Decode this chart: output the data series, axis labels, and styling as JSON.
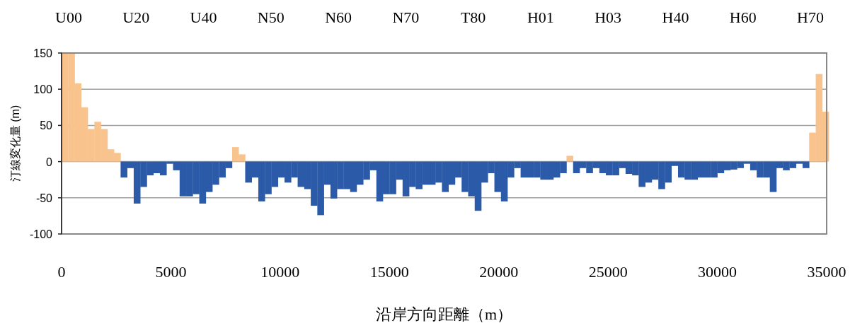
{
  "chart_data": {
    "type": "bar",
    "xlabel": "沿岸方向距離（m）",
    "ylabel": "汀線変化量 (m)",
    "x": [
      150,
      450,
      750,
      1050,
      1350,
      1650,
      1950,
      2250,
      2550,
      2850,
      3150,
      3450,
      3750,
      4050,
      4350,
      4650,
      4950,
      5250,
      5550,
      5850,
      6150,
      6450,
      6750,
      7050,
      7350,
      7650,
      7950,
      8250,
      8550,
      8850,
      9150,
      9450,
      9750,
      10050,
      10350,
      10650,
      10950,
      11250,
      11550,
      11850,
      12150,
      12450,
      12750,
      13050,
      13350,
      13650,
      13950,
      14250,
      14550,
      14850,
      15150,
      15450,
      15750,
      16050,
      16350,
      16650,
      16950,
      17250,
      17550,
      17850,
      18150,
      18450,
      18750,
      19050,
      19350,
      19650,
      19950,
      20250,
      20550,
      20850,
      21150,
      21450,
      21750,
      22050,
      22350,
      22650,
      22950,
      23250,
      23550,
      23850,
      24150,
      24450,
      24750,
      25050,
      25350,
      25650,
      25950,
      26250,
      26550,
      26850,
      27150,
      27450,
      27750,
      28050,
      28350,
      28650,
      28950,
      29250,
      29550,
      29850,
      30150,
      30450,
      30750,
      31050,
      31350,
      31650,
      31950,
      32250,
      32550,
      32850,
      33150,
      33450,
      33750,
      34050,
      34350,
      34650,
      34950
    ],
    "values": [
      150,
      150,
      108,
      75,
      45,
      55,
      45,
      17,
      12,
      -22,
      -9,
      -58,
      -35,
      -19,
      -16,
      -19,
      -3,
      -12,
      -48,
      -48,
      -45,
      -58,
      -42,
      -32,
      -22,
      -9,
      20,
      10,
      -29,
      -22,
      -55,
      -45,
      -35,
      -22,
      -29,
      -22,
      -35,
      -38,
      -61,
      -74,
      -32,
      -51,
      -38,
      -38,
      -42,
      -32,
      -25,
      -12,
      -55,
      -45,
      -45,
      -25,
      -48,
      -35,
      -38,
      -32,
      -32,
      -29,
      -42,
      -32,
      -22,
      -42,
      -48,
      -68,
      -29,
      -16,
      -42,
      -55,
      -22,
      -9,
      -22,
      -22,
      -22,
      -25,
      -25,
      -22,
      -16,
      8,
      -16,
      -9,
      -16,
      -9,
      -16,
      -19,
      -19,
      -9,
      -17,
      -19,
      -35,
      -29,
      -25,
      -38,
      -29,
      -6,
      -22,
      -25,
      -25,
      -22,
      -22,
      -22,
      -16,
      -12,
      -11,
      -9,
      -3,
      -12,
      -22,
      -22,
      -42,
      -9,
      -12,
      -9,
      -3,
      -9,
      40,
      121,
      69
    ],
    "colors": [
      "#f9c38e",
      "#f9c38e",
      "#f9c38e",
      "#f9c38e",
      "#f9c38e",
      "#f9c38e",
      "#f9c38e",
      "#f9c38e",
      "#f9c38e",
      "#2a5aa8",
      "#2a5aa8",
      "#2a5aa8",
      "#2a5aa8",
      "#2a5aa8",
      "#2a5aa8",
      "#2a5aa8",
      "#2a5aa8",
      "#2a5aa8",
      "#2a5aa8",
      "#2a5aa8",
      "#2a5aa8",
      "#2a5aa8",
      "#2a5aa8",
      "#2a5aa8",
      "#2a5aa8",
      "#2a5aa8",
      "#f9c38e",
      "#f9c38e",
      "#2a5aa8",
      "#2a5aa8",
      "#2a5aa8",
      "#2a5aa8",
      "#2a5aa8",
      "#2a5aa8",
      "#2a5aa8",
      "#2a5aa8",
      "#2a5aa8",
      "#2a5aa8",
      "#2a5aa8",
      "#2a5aa8",
      "#2a5aa8",
      "#2a5aa8",
      "#2a5aa8",
      "#2a5aa8",
      "#2a5aa8",
      "#2a5aa8",
      "#2a5aa8",
      "#2a5aa8",
      "#2a5aa8",
      "#2a5aa8",
      "#2a5aa8",
      "#2a5aa8",
      "#2a5aa8",
      "#2a5aa8",
      "#2a5aa8",
      "#2a5aa8",
      "#2a5aa8",
      "#2a5aa8",
      "#2a5aa8",
      "#2a5aa8",
      "#2a5aa8",
      "#2a5aa8",
      "#2a5aa8",
      "#2a5aa8",
      "#2a5aa8",
      "#2a5aa8",
      "#2a5aa8",
      "#2a5aa8",
      "#2a5aa8",
      "#2a5aa8",
      "#2a5aa8",
      "#2a5aa8",
      "#2a5aa8",
      "#2a5aa8",
      "#2a5aa8",
      "#2a5aa8",
      "#2a5aa8",
      "#f9c38e",
      "#2a5aa8",
      "#2a5aa8",
      "#2a5aa8",
      "#2a5aa8",
      "#2a5aa8",
      "#2a5aa8",
      "#2a5aa8",
      "#2a5aa8",
      "#2a5aa8",
      "#2a5aa8",
      "#2a5aa8",
      "#2a5aa8",
      "#2a5aa8",
      "#2a5aa8",
      "#2a5aa8",
      "#2a5aa8",
      "#2a5aa8",
      "#2a5aa8",
      "#2a5aa8",
      "#2a5aa8",
      "#2a5aa8",
      "#2a5aa8",
      "#2a5aa8",
      "#2a5aa8",
      "#2a5aa8",
      "#2a5aa8",
      "#2a5aa8",
      "#2a5aa8",
      "#2a5aa8",
      "#2a5aa8",
      "#2a5aa8",
      "#2a5aa8",
      "#2a5aa8",
      "#2a5aa8",
      "#2a5aa8",
      "#2a5aa8",
      "#f9c38e",
      "#f9c38e",
      "#f9c38e"
    ],
    "xlim": [
      0,
      35000
    ],
    "xticks": [
      0,
      5000,
      10000,
      15000,
      20000,
      25000,
      30000,
      35000
    ],
    "ylim": [
      -100,
      150
    ],
    "yticks": [
      -100,
      -50,
      0,
      50,
      100,
      150
    ],
    "annotations": [
      "U00",
      "U20",
      "U40",
      "N50",
      "N60",
      "N70",
      "T80",
      "H01",
      "H03",
      "H40",
      "H60",
      "H70"
    ],
    "grid": "y"
  }
}
